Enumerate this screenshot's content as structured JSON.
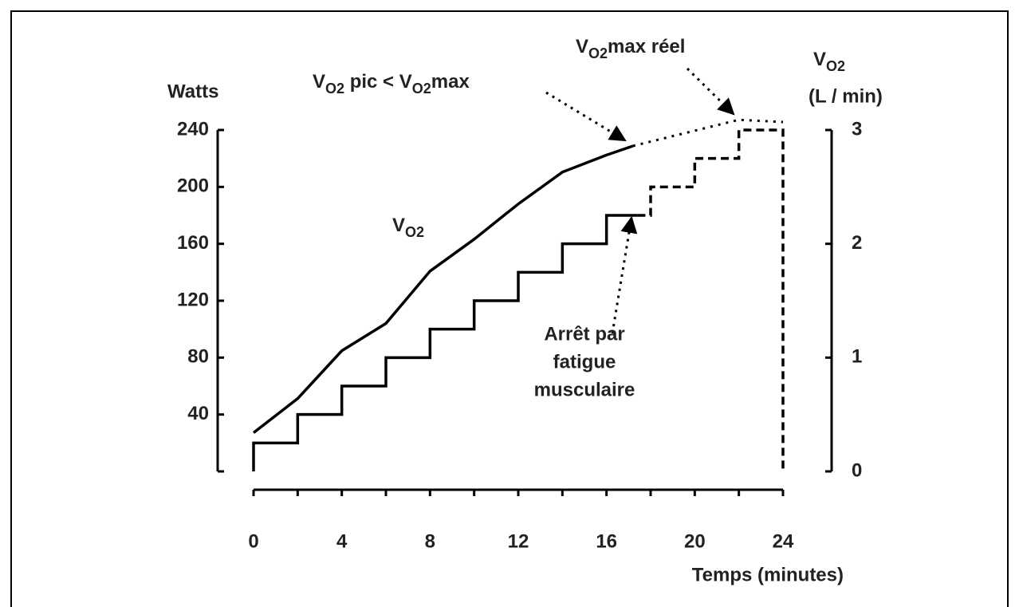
{
  "chart_data": {
    "type": "line",
    "xlim": [
      0,
      24
    ],
    "xticks": [
      0,
      4,
      8,
      12,
      16,
      20,
      24
    ],
    "xlabel": "Temps  (minutes)",
    "ylim": [
      0,
      240
    ],
    "yticks": [
      40,
      80,
      120,
      160,
      200,
      240
    ],
    "ylabel": "Watts",
    "y2lim": [
      0,
      3
    ],
    "y2ticks": [
      0,
      1,
      2,
      3
    ],
    "y2label": {
      "parts": [
        "V",
        "O2"
      ],
      "unit": "(L / min)"
    },
    "series": [
      {
        "name": "Watts",
        "style": "step-solid",
        "color": "#000000",
        "x": [
          0,
          0,
          2,
          4,
          6,
          8,
          10,
          12,
          14,
          16,
          17.4
        ],
        "values": [
          0,
          20,
          40,
          60,
          80,
          100,
          120,
          140,
          160,
          180,
          180
        ]
      },
      {
        "name": "Watts",
        "style": "step-dashed",
        "color": "#000000",
        "x": [
          17.4,
          18,
          20,
          22,
          24,
          24
        ],
        "values": [
          180,
          200,
          220,
          240,
          240,
          0
        ]
      },
      {
        "name": {
          "parts": [
            "V",
            "O2"
          ]
        },
        "style": "solid",
        "axis": "y2",
        "color": "#000000",
        "x": [
          0,
          2,
          4,
          6,
          8,
          10,
          12,
          14,
          16,
          17.2
        ],
        "values": [
          0.34,
          0.64,
          1.06,
          1.3,
          1.76,
          2.04,
          2.35,
          2.63,
          2.78,
          2.86
        ]
      },
      {
        "name": {
          "parts": [
            "V",
            "O2",
            "max réel"
          ]
        },
        "style": "dotted",
        "axis": "y2",
        "color": "#000000",
        "x": [
          17.2,
          22,
          24
        ],
        "values": [
          2.86,
          3.09,
          3.07
        ]
      }
    ],
    "annotations": [
      {
        "parts": [
          "V",
          "O2",
          " pic < V",
          "O2",
          "max"
        ]
      },
      {
        "lines": [
          "Arrêt par",
          "fatigue",
          "musculaire"
        ]
      }
    ]
  }
}
